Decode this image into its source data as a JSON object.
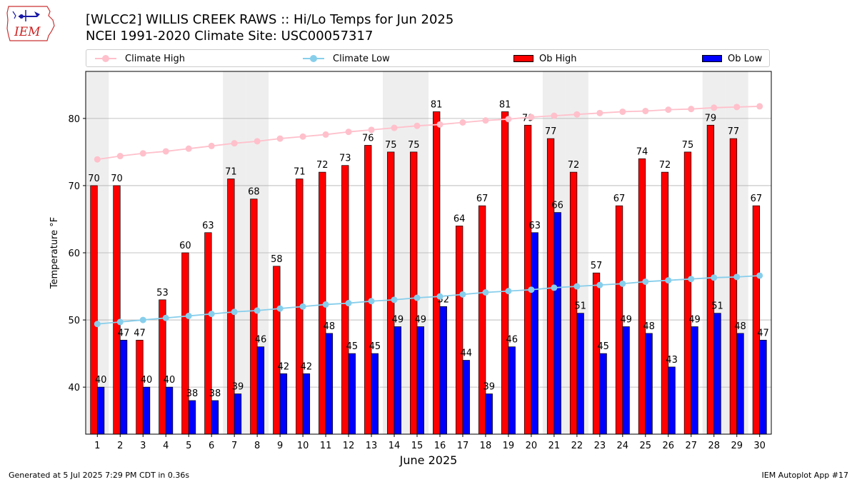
{
  "header": {
    "title_line1": "[WLCC2] WILLIS CREEK RAWS :: Hi/Lo Temps for Jun 2025",
    "title_line2": "NCEI 1991-2020 Climate Site: USC00057317",
    "logo_text": "IEM"
  },
  "legend": {
    "climate_high": "Climate High",
    "climate_low": "Climate Low",
    "ob_high": "Ob High",
    "ob_low": "Ob Low"
  },
  "colors": {
    "climate_high": "#ffc0cb",
    "climate_low": "#87ceeb",
    "ob_high": "#ff0000",
    "ob_low": "#0000ff",
    "weekend_band": "#eeeeee",
    "grid": "#b0b0b0"
  },
  "chart_data": {
    "type": "bar",
    "xlabel": "June 2025",
    "ylabel": "Temperature °F",
    "ylim": [
      33,
      87
    ],
    "yticks": [
      40,
      50,
      60,
      70,
      80
    ],
    "grid": "horizontal",
    "legend_position": "top",
    "categories": [
      "1",
      "2",
      "3",
      "4",
      "5",
      "6",
      "7",
      "8",
      "9",
      "10",
      "11",
      "12",
      "13",
      "14",
      "15",
      "16",
      "17",
      "18",
      "19",
      "20",
      "21",
      "22",
      "23",
      "24",
      "25",
      "26",
      "27",
      "28",
      "29",
      "30"
    ],
    "shaded_days": [
      1,
      7,
      8,
      14,
      15,
      21,
      22,
      28,
      29
    ],
    "series": [
      {
        "name": "Ob High",
        "kind": "bar",
        "values": [
          70,
          70,
          47,
          53,
          60,
          63,
          71,
          68,
          58,
          71,
          72,
          73,
          76,
          75,
          75,
          81,
          64,
          67,
          81,
          79,
          77,
          72,
          57,
          67,
          74,
          72,
          75,
          79,
          77,
          67
        ]
      },
      {
        "name": "Ob Low",
        "kind": "bar",
        "values": [
          40,
          47,
          40,
          40,
          38,
          38,
          39,
          46,
          42,
          42,
          48,
          45,
          45,
          49,
          49,
          52,
          44,
          39,
          46,
          63,
          66,
          51,
          45,
          49,
          48,
          43,
          49,
          51,
          48,
          47
        ]
      },
      {
        "name": "Climate High",
        "kind": "line",
        "values": [
          73.9,
          74.4,
          74.8,
          75.1,
          75.5,
          75.9,
          76.3,
          76.6,
          77.0,
          77.3,
          77.6,
          78.0,
          78.3,
          78.6,
          78.9,
          79.1,
          79.4,
          79.7,
          79.9,
          80.2,
          80.4,
          80.6,
          80.8,
          81.0,
          81.1,
          81.3,
          81.4,
          81.6,
          81.7,
          81.8
        ]
      },
      {
        "name": "Climate Low",
        "kind": "line",
        "values": [
          49.4,
          49.7,
          50.0,
          50.3,
          50.6,
          50.9,
          51.2,
          51.4,
          51.7,
          52.0,
          52.3,
          52.5,
          52.8,
          53.0,
          53.3,
          53.5,
          53.8,
          54.1,
          54.3,
          54.5,
          54.8,
          55.0,
          55.2,
          55.4,
          55.7,
          55.9,
          56.1,
          56.3,
          56.4,
          56.6
        ]
      }
    ]
  },
  "footer": {
    "generated": "Generated at 5 Jul 2025 7:29 PM CDT in 0.36s",
    "app": "IEM Autoplot App #17"
  }
}
